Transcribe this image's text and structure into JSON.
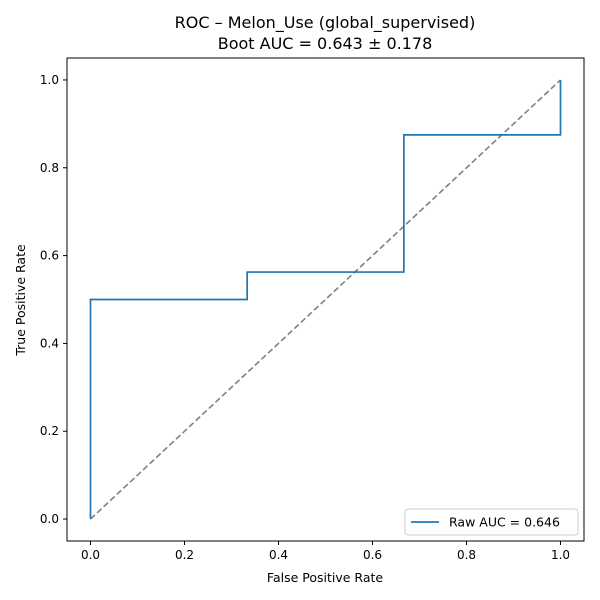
{
  "chart_data": {
    "type": "line",
    "title": "ROC – Melon_Use (global_supervised)",
    "subtitle": "Boot AUC = 0.643 ± 0.178",
    "xlabel": "False Positive Rate",
    "ylabel": "True Positive Rate",
    "xlim": [
      -0.05,
      1.05
    ],
    "ylim": [
      -0.05,
      1.05
    ],
    "xticks": [
      "0.0",
      "0.2",
      "0.4",
      "0.6",
      "0.8",
      "1.0"
    ],
    "yticks": [
      "0.0",
      "0.2",
      "0.4",
      "0.6",
      "0.8",
      "1.0"
    ],
    "grid": false,
    "legend_position": "bottom-right",
    "series": [
      {
        "name": "Raw AUC = 0.646",
        "color": "#1f77b4",
        "x": [
          0.0,
          0.0,
          0.3333,
          0.3333,
          0.6667,
          0.6667,
          1.0,
          1.0
        ],
        "y": [
          0.0,
          0.5,
          0.5,
          0.5625,
          0.5625,
          0.875,
          0.875,
          1.0
        ]
      }
    ],
    "reference_line": {
      "color": "#808080",
      "style": "dashed",
      "x": [
        0.0,
        1.0
      ],
      "y": [
        0.0,
        1.0
      ]
    }
  }
}
